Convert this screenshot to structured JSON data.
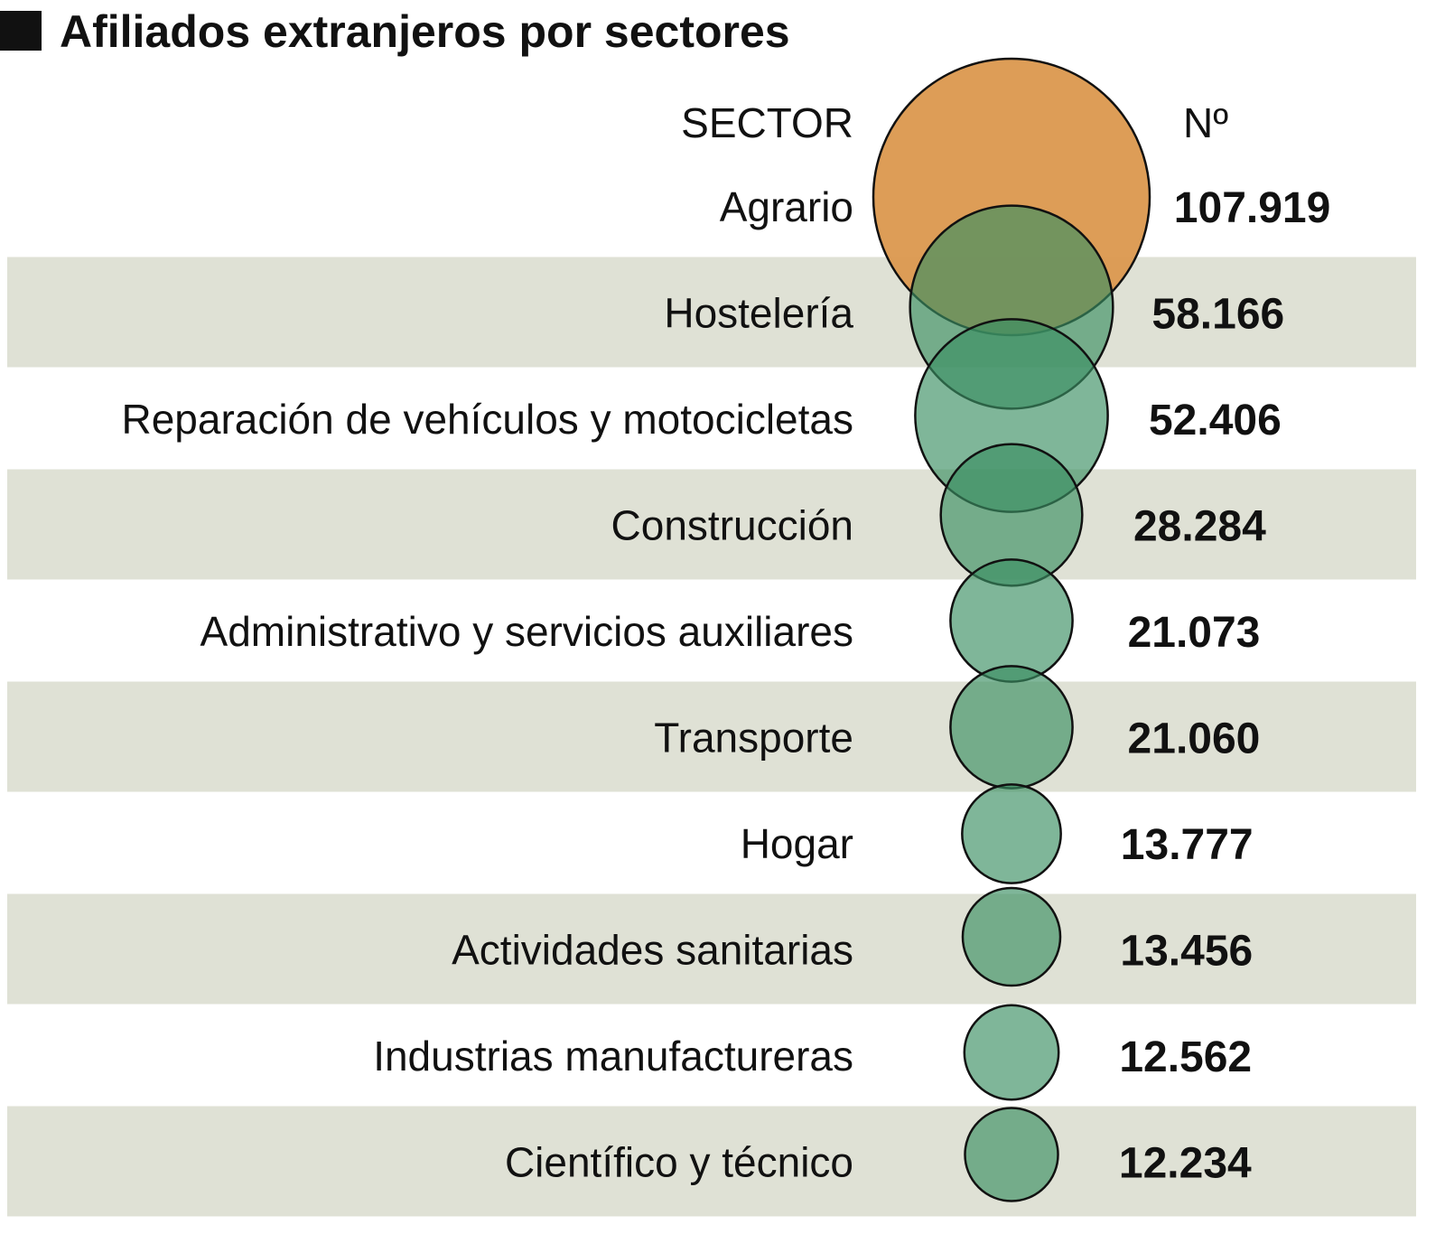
{
  "chart_data": {
    "type": "bubble",
    "title": "Afiliados extranjeros por sectores",
    "column_headers": {
      "sector": "SECTOR",
      "value": "Nº"
    },
    "categories": [
      "Agrario",
      "Hostelería",
      "Reparación de vehículos y motocicletas",
      "Construcción",
      "Administrativo y servicios auxiliares",
      "Transporte",
      "Hogar",
      "Actividades sanitarias",
      "Industrias manufactureras",
      "Científico y técnico"
    ],
    "values": [
      107919,
      58166,
      52406,
      28284,
      21073,
      21060,
      13777,
      13456,
      12562,
      12234
    ],
    "value_labels": [
      "107.919",
      "58.166",
      "52.406",
      "28.284",
      "21.073",
      "21.060",
      "13.777",
      "13.456",
      "12.562",
      "12.234"
    ],
    "highlight_index": 0,
    "colors": {
      "highlight": "#dc9a52",
      "bubble": "#3a8f62",
      "band": "#dfe1d5",
      "text": "#111111"
    }
  }
}
